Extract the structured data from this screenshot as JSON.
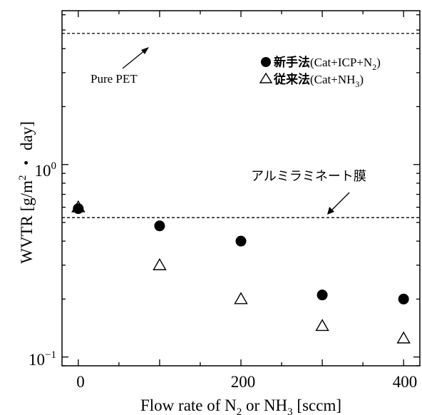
{
  "chart_data": {
    "type": "scatter",
    "xlabel": {
      "pre": "Flow rate of N",
      "sub1": "2",
      "mid": " or NH",
      "sub2": "3",
      "post": " [sccm]"
    },
    "ylabel": {
      "pre": "WVTR   [g/m",
      "sup": "2",
      "post": " ・ day]"
    },
    "xlim": [
      -20,
      420
    ],
    "ylim": [
      0.09,
      6.3
    ],
    "y_scale": "log",
    "x_ticks": [
      0,
      200,
      400
    ],
    "x_tick_labels": [
      "0",
      "200",
      "400"
    ],
    "y_tick_labels": [
      {
        "value": 1,
        "base": "10",
        "exp": "0"
      },
      {
        "value": 0.1,
        "base": "10",
        "exp": "−1"
      }
    ],
    "series": [
      {
        "name": {
          "jp": "新手法",
          "pre": "(Cat+ICP+N",
          "sub": "2",
          "post": ")"
        },
        "marker": "filled-circle",
        "x": [
          0,
          100,
          200,
          300,
          400
        ],
        "y": [
          0.59,
          0.48,
          0.4,
          0.21,
          0.2
        ]
      },
      {
        "name": {
          "jp": "従来法",
          "pre": "(Cat+NH",
          "sub": "3",
          "post": ")"
        },
        "marker": "open-triangle",
        "x": [
          0,
          100,
          200,
          300,
          400
        ],
        "y": [
          0.6,
          0.3,
          0.2,
          0.145,
          0.125
        ]
      }
    ],
    "reference_lines": [
      {
        "y": 4.8,
        "label": "Pure PET",
        "style": "dashed"
      },
      {
        "y": 0.53,
        "label": "アルミラミネート膜",
        "style": "dashed"
      }
    ],
    "legend_position": "top-right",
    "grid": false
  }
}
